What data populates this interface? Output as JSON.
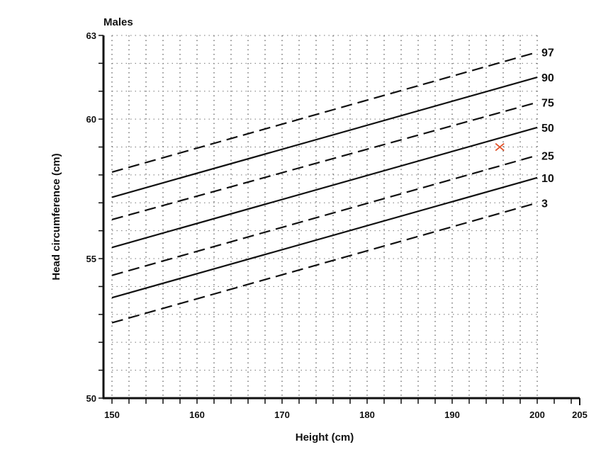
{
  "chart_data": {
    "type": "line",
    "title": "Males",
    "xlabel": "Height (cm)",
    "ylabel": "Head circumference (cm)",
    "xlim": [
      149,
      205
    ],
    "ylim": [
      50,
      63
    ],
    "x_ticks": [
      150,
      160,
      170,
      180,
      190,
      200,
      205
    ],
    "y_ticks": [
      50,
      55,
      60,
      63
    ],
    "grid": true,
    "series": [
      {
        "name": "97",
        "style": "dashed",
        "x": [
          150,
          200
        ],
        "y": [
          58.1,
          62.4
        ]
      },
      {
        "name": "90",
        "style": "solid",
        "x": [
          150,
          200
        ],
        "y": [
          57.2,
          61.5
        ]
      },
      {
        "name": "75",
        "style": "dashed",
        "x": [
          150,
          200
        ],
        "y": [
          56.4,
          60.6
        ]
      },
      {
        "name": "50",
        "style": "solid",
        "x": [
          150,
          200
        ],
        "y": [
          55.4,
          59.7
        ]
      },
      {
        "name": "25",
        "style": "dashed",
        "x": [
          150,
          200
        ],
        "y": [
          54.4,
          58.7
        ]
      },
      {
        "name": "10",
        "style": "solid",
        "x": [
          150,
          200
        ],
        "y": [
          53.6,
          57.9
        ]
      },
      {
        "name": "3",
        "style": "dashed",
        "x": [
          150,
          200
        ],
        "y": [
          52.7,
          57.0
        ]
      }
    ],
    "marker": {
      "x": 195.6,
      "y": 59.0,
      "symbol": "x",
      "color": "#e0522a"
    }
  }
}
